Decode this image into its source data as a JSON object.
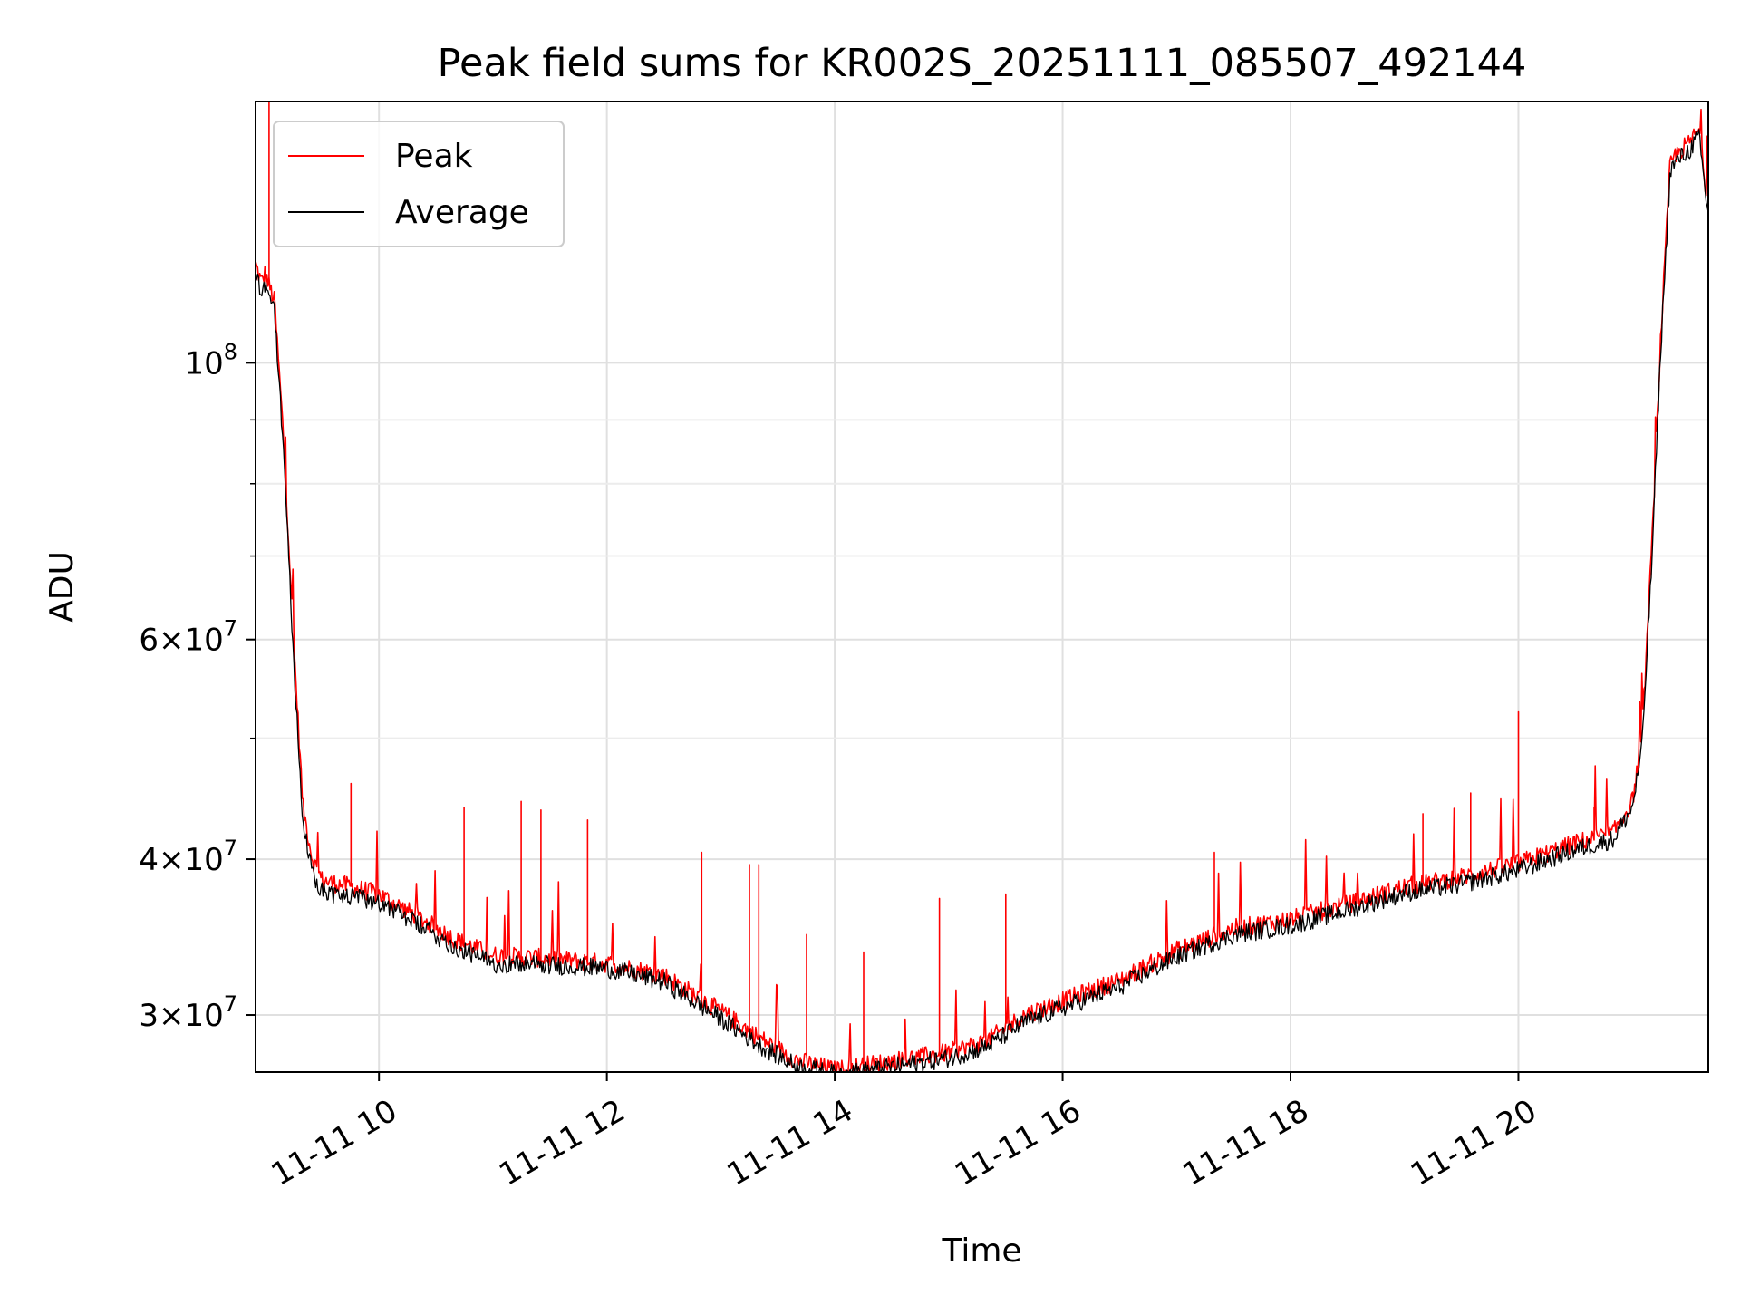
{
  "chart_data": {
    "type": "line",
    "title": "Peak field sums for KR002S_20251111_085507_492144",
    "xlabel": "Time",
    "ylabel": "ADU",
    "x_type": "datetime",
    "xlim": [
      "2025-11-11 08:55",
      "2025-11-11 21:40"
    ],
    "yscale": "log",
    "ylim": [
      27000000,
      162000000
    ],
    "grid": true,
    "legend_position": "upper-left",
    "x_ticks": [
      {
        "value": "2025-11-11 10:00",
        "label": "11-11 10"
      },
      {
        "value": "2025-11-11 12:00",
        "label": "11-11 12"
      },
      {
        "value": "2025-11-11 14:00",
        "label": "11-11 14"
      },
      {
        "value": "2025-11-11 16:00",
        "label": "11-11 16"
      },
      {
        "value": "2025-11-11 18:00",
        "label": "11-11 18"
      },
      {
        "value": "2025-11-11 20:00",
        "label": "11-11 20"
      }
    ],
    "y_ticks": [
      {
        "value": 30000000,
        "base": "3",
        "exp": "7",
        "label": "3 × 10^7"
      },
      {
        "value": 40000000,
        "base": "4",
        "exp": "7",
        "label": "4 × 10^7"
      },
      {
        "value": 60000000,
        "base": "6",
        "exp": "7",
        "label": "6 × 10^7"
      },
      {
        "value": 100000000,
        "base": "",
        "exp": "8",
        "label": "10^8"
      }
    ],
    "y_minor_ticks": [
      50000000,
      70000000,
      80000000,
      90000000
    ],
    "series": [
      {
        "name": "Peak",
        "color": "#ff0000",
        "x": [
          "2025-11-11 08:55",
          "2025-11-11 08:58",
          "2025-11-11 09:00",
          "2025-11-11 09:05",
          "2025-11-11 09:10",
          "2025-11-11 09:15",
          "2025-11-11 09:20",
          "2025-11-11 09:25",
          "2025-11-11 09:30",
          "2025-11-11 09:35",
          "2025-11-11 09:40",
          "2025-11-11 10:00",
          "2025-11-11 10:20",
          "2025-11-11 10:40",
          "2025-11-11 11:00",
          "2025-11-11 11:30",
          "2025-11-11 12:00",
          "2025-11-11 12:30",
          "2025-11-11 13:00",
          "2025-11-11 13:20",
          "2025-11-11 13:40",
          "2025-11-11 14:00",
          "2025-11-11 14:20",
          "2025-11-11 14:40",
          "2025-11-11 15:00",
          "2025-11-11 15:20",
          "2025-11-11 15:40",
          "2025-11-11 16:00",
          "2025-11-11 16:30",
          "2025-11-11 17:00",
          "2025-11-11 17:30",
          "2025-11-11 18:00",
          "2025-11-11 18:30",
          "2025-11-11 19:00",
          "2025-11-11 19:30",
          "2025-11-11 20:00",
          "2025-11-11 20:30",
          "2025-11-11 20:50",
          "2025-11-11 21:00",
          "2025-11-11 21:05",
          "2025-11-11 21:10",
          "2025-11-11 21:15",
          "2025-11-11 21:20",
          "2025-11-11 21:25",
          "2025-11-11 21:30",
          "2025-11-11 21:35",
          "2025-11-11 21:40"
        ],
        "values": [
          120000000,
          116000000,
          118000000,
          112000000,
          86000000,
          60000000,
          44000000,
          40000000,
          38500000,
          38300000,
          38200000,
          37500000,
          36000000,
          34500000,
          33500000,
          33300000,
          33000000,
          32300000,
          30200000,
          28800000,
          27600000,
          27100000,
          27400000,
          27700000,
          28000000,
          28600000,
          30000000,
          30800000,
          32000000,
          33800000,
          35200000,
          35800000,
          36800000,
          38000000,
          38700000,
          39700000,
          41200000,
          42000000,
          44500000,
          50000000,
          70000000,
          105000000,
          145000000,
          148000000,
          150000000,
          154000000,
          133000000
        ],
        "spikes": [
          {
            "x": "2025-11-11 09:02",
            "value": 165000000
          },
          {
            "x": "2025-11-11 09:45",
            "value": 46000000
          },
          {
            "x": "2025-11-11 10:45",
            "value": 44000000
          },
          {
            "x": "2025-11-11 11:15",
            "value": 44500000
          },
          {
            "x": "2025-11-11 11:25",
            "value": 43800000
          },
          {
            "x": "2025-11-11 11:50",
            "value": 43000000
          },
          {
            "x": "2025-11-11 12:50",
            "value": 40500000
          },
          {
            "x": "2025-11-11 13:15",
            "value": 39600000
          },
          {
            "x": "2025-11-11 13:20",
            "value": 39600000
          },
          {
            "x": "2025-11-11 13:45",
            "value": 34800000
          },
          {
            "x": "2025-11-11 14:15",
            "value": 33700000
          },
          {
            "x": "2025-11-11 14:55",
            "value": 37200000
          },
          {
            "x": "2025-11-11 15:30",
            "value": 37500000
          },
          {
            "x": "2025-11-11 17:20",
            "value": 40500000
          },
          {
            "x": "2025-11-11 19:10",
            "value": 43500000
          },
          {
            "x": "2025-11-11 19:35",
            "value": 45200000
          },
          {
            "x": "2025-11-11 20:00",
            "value": 52500000
          },
          {
            "x": "2025-11-11 20:40",
            "value": 44000000
          }
        ]
      },
      {
        "name": "Average",
        "color": "#000000",
        "x": [
          "2025-11-11 08:55",
          "2025-11-11 08:58",
          "2025-11-11 09:00",
          "2025-11-11 09:05",
          "2025-11-11 09:10",
          "2025-11-11 09:15",
          "2025-11-11 09:20",
          "2025-11-11 09:25",
          "2025-11-11 09:30",
          "2025-11-11 09:35",
          "2025-11-11 09:40",
          "2025-11-11 10:00",
          "2025-11-11 10:20",
          "2025-11-11 10:40",
          "2025-11-11 11:00",
          "2025-11-11 11:30",
          "2025-11-11 12:00",
          "2025-11-11 12:30",
          "2025-11-11 13:00",
          "2025-11-11 13:20",
          "2025-11-11 13:40",
          "2025-11-11 14:00",
          "2025-11-11 14:20",
          "2025-11-11 14:40",
          "2025-11-11 15:00",
          "2025-11-11 15:20",
          "2025-11-11 15:40",
          "2025-11-11 16:00",
          "2025-11-11 16:30",
          "2025-11-11 17:00",
          "2025-11-11 17:30",
          "2025-11-11 18:00",
          "2025-11-11 18:30",
          "2025-11-11 19:00",
          "2025-11-11 19:30",
          "2025-11-11 20:00",
          "2025-11-11 20:30",
          "2025-11-11 20:50",
          "2025-11-11 21:00",
          "2025-11-11 21:05",
          "2025-11-11 21:10",
          "2025-11-11 21:15",
          "2025-11-11 21:20",
          "2025-11-11 21:25",
          "2025-11-11 21:30",
          "2025-11-11 21:35",
          "2025-11-11 21:40"
        ],
        "values": [
          118000000,
          114000000,
          116000000,
          110000000,
          84000000,
          58000000,
          42500000,
          39000000,
          37800000,
          37500000,
          37400000,
          37000000,
          35500000,
          34000000,
          33000000,
          32900000,
          32700000,
          31900000,
          29800000,
          28400000,
          27300000,
          26900000,
          27100000,
          27400000,
          27700000,
          28300000,
          29600000,
          30400000,
          31600000,
          33400000,
          34800000,
          35400000,
          36400000,
          37600000,
          38200000,
          39200000,
          40700000,
          41500000,
          44000000,
          49000000,
          68000000,
          103000000,
          143000000,
          146000000,
          148000000,
          152000000,
          131000000
        ]
      }
    ]
  }
}
